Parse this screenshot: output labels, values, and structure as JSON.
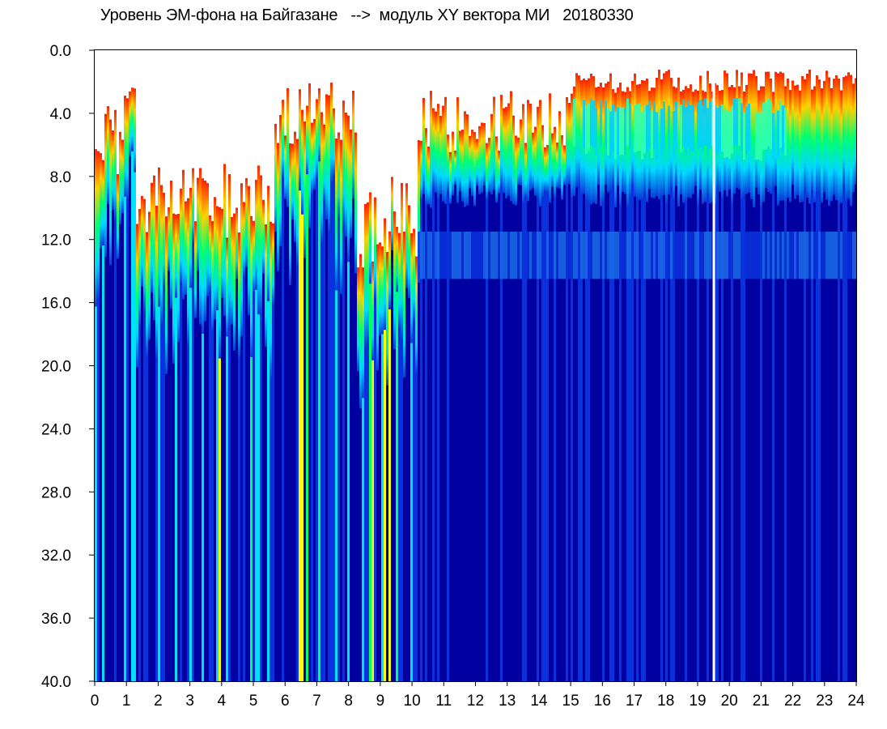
{
  "chart_data": {
    "type": "heatmap",
    "title": "Уровень ЭМ-фона на Байгазане   -->  модуль XY вектора МИ   20180330",
    "x_ticks": [
      "0",
      "1",
      "2",
      "3",
      "4",
      "5",
      "6",
      "7",
      "8",
      "9",
      "10",
      "11",
      "12",
      "13",
      "14",
      "15",
      "16",
      "17",
      "18",
      "19",
      "20",
      "21",
      "22",
      "23",
      "24"
    ],
    "y_ticks": [
      "0.0",
      "4.0",
      "8.0",
      "12.0",
      "16.0",
      "20.0",
      "24.0",
      "28.0",
      "32.0",
      "36.0",
      "40.0"
    ],
    "xlim": [
      0,
      24
    ],
    "ylim": [
      0,
      40
    ],
    "y_inverted": true,
    "colormap": [
      "#0000a0",
      "#0a32dc",
      "#00e0ff",
      "#00ff60",
      "#ffff00",
      "#ff0000"
    ],
    "background_color": "#ffffff",
    "gap_line_hour": 19.5
  }
}
